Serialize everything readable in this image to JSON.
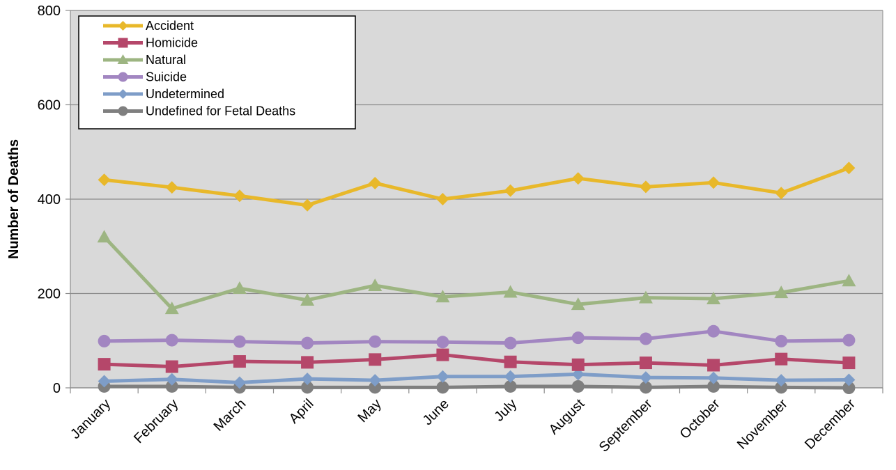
{
  "chart_data": {
    "type": "line",
    "title": "",
    "xlabel": "",
    "ylabel": "Number of Deaths",
    "categories": [
      "January",
      "February",
      "March",
      "April",
      "May",
      "June",
      "July",
      "August",
      "September",
      "October",
      "November",
      "December"
    ],
    "ylim": [
      0,
      800
    ],
    "yticks": [
      0,
      200,
      400,
      600,
      800
    ],
    "grid": true,
    "legend_position": "top-left",
    "series": [
      {
        "name": "Accident",
        "color": "#E8B82A",
        "marker": "diamond",
        "values": [
          441,
          425,
          407,
          387,
          434,
          400,
          418,
          444,
          426,
          435,
          413,
          466
        ]
      },
      {
        "name": "Homicide",
        "color": "#B5476A",
        "marker": "square",
        "values": [
          50,
          45,
          56,
          54,
          60,
          70,
          55,
          49,
          53,
          48,
          61,
          53
        ]
      },
      {
        "name": "Natural",
        "color": "#9DB582",
        "marker": "triangle",
        "values": [
          320,
          168,
          211,
          186,
          217,
          193,
          203,
          177,
          191,
          189,
          202,
          227
        ]
      },
      {
        "name": "Suicide",
        "color": "#A286C1",
        "marker": "circle",
        "values": [
          99,
          101,
          98,
          95,
          98,
          97,
          95,
          106,
          104,
          120,
          99,
          101
        ]
      },
      {
        "name": "Undetermined",
        "color": "#7E9DC8",
        "marker": "diamond",
        "values": [
          14,
          18,
          11,
          19,
          16,
          24,
          24,
          29,
          22,
          21,
          16,
          17
        ]
      },
      {
        "name": "Undefined for Fetal Deaths",
        "color": "#7F7F7F",
        "marker": "circle",
        "values": [
          3,
          3,
          1,
          1,
          1,
          1,
          3,
          3,
          1,
          3,
          1,
          0
        ]
      }
    ]
  }
}
